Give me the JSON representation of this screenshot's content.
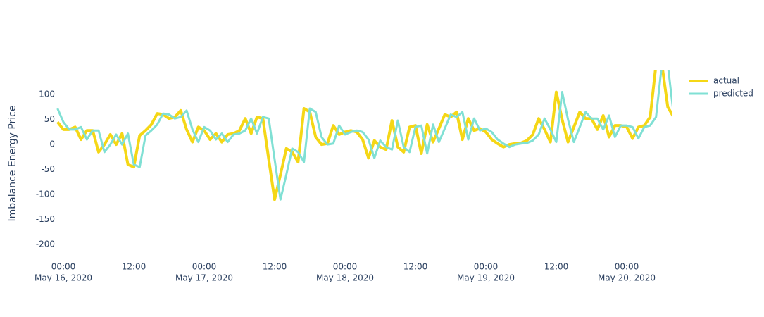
{
  "chart_data": {
    "type": "line",
    "y_label": "Imbalance Energy Price",
    "x": [
      "2020-05-15 23:00",
      "2020-05-16 00:00",
      "2020-05-16 01:00",
      "2020-05-16 02:00",
      "2020-05-16 03:00",
      "2020-05-16 04:00",
      "2020-05-16 05:00",
      "2020-05-16 06:00",
      "2020-05-16 07:00",
      "2020-05-16 08:00",
      "2020-05-16 09:00",
      "2020-05-16 10:00",
      "2020-05-16 11:00",
      "2020-05-16 12:00",
      "2020-05-16 13:00",
      "2020-05-16 14:00",
      "2020-05-16 15:00",
      "2020-05-16 16:00",
      "2020-05-16 17:00",
      "2020-05-16 18:00",
      "2020-05-16 19:00",
      "2020-05-16 20:00",
      "2020-05-16 21:00",
      "2020-05-16 22:00",
      "2020-05-16 23:00",
      "2020-05-17 00:00",
      "2020-05-17 01:00",
      "2020-05-17 02:00",
      "2020-05-17 03:00",
      "2020-05-17 04:00",
      "2020-05-17 05:00",
      "2020-05-17 06:00",
      "2020-05-17 07:00",
      "2020-05-17 08:00",
      "2020-05-17 09:00",
      "2020-05-17 10:00",
      "2020-05-17 11:00",
      "2020-05-17 12:00",
      "2020-05-17 13:00",
      "2020-05-17 14:00",
      "2020-05-17 15:00",
      "2020-05-17 16:00",
      "2020-05-17 17:00",
      "2020-05-17 18:00",
      "2020-05-17 19:00",
      "2020-05-17 20:00",
      "2020-05-17 21:00",
      "2020-05-17 22:00",
      "2020-05-17 23:00",
      "2020-05-18 00:00",
      "2020-05-18 01:00",
      "2020-05-18 02:00",
      "2020-05-18 03:00",
      "2020-05-18 04:00",
      "2020-05-18 05:00",
      "2020-05-18 06:00",
      "2020-05-18 07:00",
      "2020-05-18 08:00",
      "2020-05-18 09:00",
      "2020-05-18 10:00",
      "2020-05-18 11:00",
      "2020-05-18 12:00",
      "2020-05-18 13:00",
      "2020-05-18 14:00",
      "2020-05-18 15:00",
      "2020-05-18 16:00",
      "2020-05-18 17:00",
      "2020-05-18 18:00",
      "2020-05-18 19:00",
      "2020-05-18 20:00",
      "2020-05-18 21:00",
      "2020-05-18 22:00",
      "2020-05-18 23:00",
      "2020-05-19 00:00",
      "2020-05-19 01:00",
      "2020-05-19 02:00",
      "2020-05-19 03:00",
      "2020-05-19 04:00",
      "2020-05-19 05:00",
      "2020-05-19 06:00",
      "2020-05-19 07:00",
      "2020-05-19 08:00",
      "2020-05-19 09:00",
      "2020-05-19 10:00",
      "2020-05-19 11:00",
      "2020-05-19 12:00",
      "2020-05-19 13:00",
      "2020-05-19 14:00",
      "2020-05-19 15:00",
      "2020-05-19 16:00",
      "2020-05-19 17:00",
      "2020-05-19 18:00",
      "2020-05-19 19:00",
      "2020-05-19 20:00",
      "2020-05-19 21:00",
      "2020-05-19 22:00",
      "2020-05-19 23:00",
      "2020-05-20 00:00",
      "2020-05-20 01:00",
      "2020-05-20 02:00",
      "2020-05-20 03:00",
      "2020-05-20 04:00",
      "2020-05-20 05:00",
      "2020-05-20 06:00",
      "2020-05-20 07:00",
      "2020-05-20 08:00"
    ],
    "series": [
      {
        "name": "actual",
        "color": "#f5d716",
        "values": [
          45,
          30,
          30,
          35,
          10,
          28,
          28,
          -15,
          0,
          20,
          0,
          22,
          -40,
          -45,
          18,
          28,
          40,
          62,
          60,
          52,
          55,
          68,
          30,
          5,
          35,
          28,
          10,
          22,
          5,
          20,
          22,
          28,
          52,
          22,
          55,
          52,
          -30,
          -110,
          -60,
          -8,
          -15,
          -35,
          72,
          65,
          15,
          0,
          2,
          38,
          20,
          25,
          28,
          25,
          10,
          -27,
          8,
          -5,
          -10,
          48,
          -5,
          -15,
          35,
          38,
          -18,
          40,
          5,
          32,
          60,
          55,
          65,
          10,
          52,
          28,
          32,
          25,
          10,
          2,
          -5,
          0,
          2,
          3,
          8,
          20,
          52,
          30,
          5,
          105,
          50,
          5,
          35,
          65,
          52,
          52,
          30,
          58,
          15,
          38,
          38,
          35,
          12,
          35,
          38,
          55,
          160,
          160,
          75,
          55
        ]
      },
      {
        "name": "predicted",
        "color": "#80e0d4",
        "values": [
          72,
          45,
          30,
          30,
          35,
          10,
          28,
          28,
          -15,
          0,
          20,
          0,
          22,
          -40,
          -45,
          18,
          28,
          40,
          62,
          60,
          52,
          55,
          68,
          30,
          5,
          35,
          28,
          10,
          22,
          5,
          20,
          22,
          28,
          52,
          22,
          55,
          52,
          -30,
          -110,
          -60,
          -8,
          -15,
          -35,
          72,
          65,
          15,
          0,
          2,
          38,
          20,
          25,
          28,
          25,
          10,
          -27,
          8,
          -5,
          -10,
          48,
          -5,
          -15,
          35,
          38,
          -18,
          40,
          5,
          32,
          60,
          55,
          65,
          10,
          52,
          28,
          32,
          25,
          10,
          2,
          -5,
          0,
          2,
          3,
          8,
          20,
          52,
          30,
          5,
          105,
          50,
          5,
          35,
          65,
          52,
          52,
          30,
          58,
          15,
          38,
          38,
          35,
          12,
          35,
          38,
          55,
          160,
          160,
          60
        ]
      }
    ],
    "xlim": [
      "2020-05-15 22:48",
      "2020-05-20 07:48"
    ],
    "xticks": [
      {
        "value": "2020-05-16 00:00",
        "label": "00:00",
        "sublabel": "May 16, 2020"
      },
      {
        "value": "2020-05-16 12:00",
        "label": "12:00"
      },
      {
        "value": "2020-05-17 00:00",
        "label": "00:00",
        "sublabel": "May 17, 2020"
      },
      {
        "value": "2020-05-17 12:00",
        "label": "12:00"
      },
      {
        "value": "2020-05-18 00:00",
        "label": "00:00",
        "sublabel": "May 18, 2020"
      },
      {
        "value": "2020-05-18 12:00",
        "label": "12:00"
      },
      {
        "value": "2020-05-19 00:00",
        "label": "00:00",
        "sublabel": "May 19, 2020"
      },
      {
        "value": "2020-05-19 12:00",
        "label": "12:00"
      },
      {
        "value": "2020-05-20 00:00",
        "label": "00:00",
        "sublabel": "May 20, 2020"
      }
    ],
    "ylim": [
      -225,
      148
    ],
    "yticks": [
      100,
      50,
      0,
      -50,
      -100,
      -150,
      -200
    ],
    "legend": "top-right"
  }
}
